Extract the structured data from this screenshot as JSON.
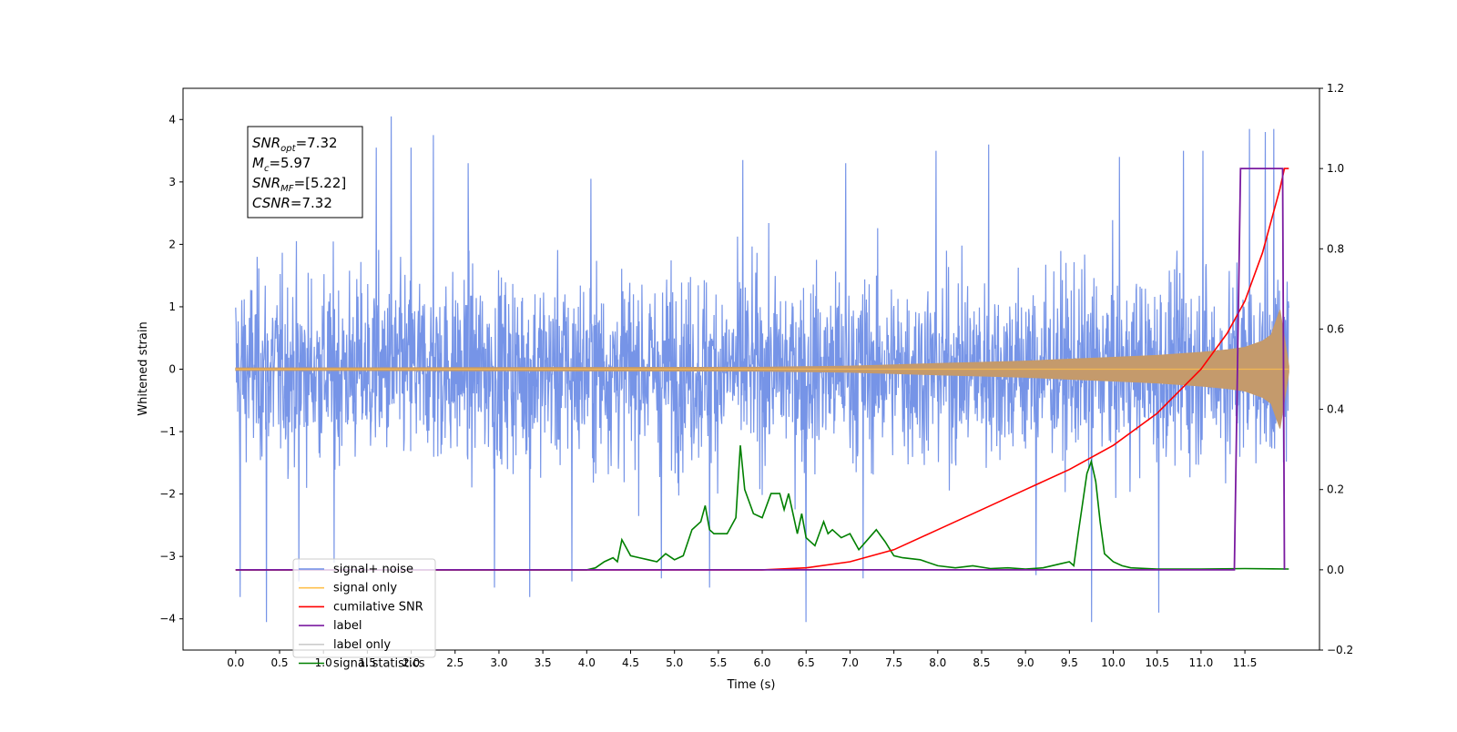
{
  "chart_data": {
    "type": "line",
    "title": "",
    "xlabel": "Time (s)",
    "ylabel": "Whitened strain",
    "xlim": [
      -0.6,
      12.35
    ],
    "ylim": [
      -4.5,
      4.5
    ],
    "y2lim": [
      -0.2,
      1.2
    ],
    "x_ticks": [
      "0.0",
      "0.5",
      "1.0",
      "1.5",
      "2.0",
      "2.5",
      "3.0",
      "3.5",
      "4.0",
      "4.5",
      "5.0",
      "5.5",
      "6.0",
      "6.5",
      "7.0",
      "7.5",
      "8.0",
      "8.5",
      "9.0",
      "9.5",
      "10.0",
      "10.5",
      "11.0",
      "11.5"
    ],
    "y_ticks": [
      "4",
      "3",
      "2",
      "1",
      "0",
      "−1",
      "−2",
      "−3",
      "−4"
    ],
    "y2_ticks": [
      "1.2",
      "1.0",
      "0.8",
      "0.6",
      "0.4",
      "0.2",
      "0.0",
      "−0.2"
    ],
    "legend_position": "lower-left",
    "annotation": {
      "lines": [
        {
          "base": "SNR",
          "sub": "opt",
          "value": "=7.32"
        },
        {
          "base": "M",
          "sub": "c",
          "value": "=5.97"
        },
        {
          "base": "SNR",
          "sub": "MF",
          "value": "=[5.22]"
        },
        {
          "base": "CSNR",
          "sub": "",
          "value": "=7.32"
        }
      ]
    },
    "series": [
      {
        "name": "signal+ noise",
        "color": "#6f8ee6",
        "axis": "left",
        "x_range": [
          0.0,
          12.0
        ],
        "description_values": {
          "band_typical": [
            -1.5,
            1.7
          ],
          "band_peaks": [
            -3.8,
            4.05
          ]
        },
        "spikes": [
          [
            0.05,
            -3.65
          ],
          [
            0.35,
            -4.05
          ],
          [
            0.72,
            -3.4
          ],
          [
            1.12,
            -3.1
          ],
          [
            1.77,
            4.05
          ],
          [
            2.25,
            3.75
          ],
          [
            2.95,
            -3.5
          ],
          [
            3.35,
            -3.65
          ],
          [
            3.83,
            -3.4
          ],
          [
            4.85,
            -3.35
          ],
          [
            5.4,
            -3.5
          ],
          [
            5.78,
            3.35
          ],
          [
            6.5,
            -4.05
          ],
          [
            7.15,
            -3.35
          ],
          [
            7.98,
            3.5
          ],
          [
            8.58,
            3.6
          ],
          [
            9.12,
            -3.3
          ],
          [
            9.75,
            -4.05
          ],
          [
            10.52,
            -3.9
          ],
          [
            11.02,
            3.5
          ],
          [
            11.55,
            3.85
          ],
          [
            11.73,
            3.8
          ],
          [
            11.83,
            3.85
          ],
          [
            1.6,
            3.55
          ],
          [
            2.65,
            3.3
          ],
          [
            4.05,
            3.05
          ],
          [
            6.95,
            3.3
          ],
          [
            10.07,
            3.4
          ],
          [
            10.8,
            3.5
          ],
          [
            2.0,
            3.55
          ]
        ]
      },
      {
        "name": "signal only",
        "color": "#ffc04d",
        "axis": "left",
        "envelope": {
          "x": [
            0,
            6,
            7,
            7.5,
            8,
            8.5,
            9,
            9.5,
            10,
            10.5,
            11,
            11.3,
            11.5,
            11.7,
            11.8,
            11.9,
            11.95,
            12.0
          ],
          "amp": [
            0.02,
            0.03,
            0.05,
            0.07,
            0.09,
            0.11,
            0.13,
            0.16,
            0.19,
            0.22,
            0.27,
            0.31,
            0.35,
            0.45,
            0.55,
            0.95,
            0.5,
            0.05
          ]
        }
      },
      {
        "name": "cumilative SNR",
        "color": "#ff0000",
        "axis": "right",
        "x": [
          0,
          6,
          6.5,
          7,
          7.5,
          8,
          8.5,
          9,
          9.5,
          10,
          10.5,
          11,
          11.3,
          11.5,
          11.7,
          11.8,
          11.9,
          11.95,
          12.0
        ],
        "values": [
          0,
          0,
          0.005,
          0.02,
          0.05,
          0.1,
          0.15,
          0.2,
          0.25,
          0.31,
          0.39,
          0.5,
          0.59,
          0.67,
          0.79,
          0.87,
          0.95,
          1.0,
          1.0
        ]
      },
      {
        "name": "label",
        "color": "#7a1aa0",
        "axis": "right",
        "x": [
          0,
          11.38,
          11.45,
          11.93,
          11.95
        ],
        "values": [
          0,
          0,
          1,
          1,
          0
        ]
      },
      {
        "name": "label only",
        "color": "#cccccc",
        "axis": "right",
        "hidden_in_plot": true
      },
      {
        "name": "signal statistics",
        "color": "#008000",
        "axis": "right",
        "x": [
          0,
          4.0,
          4.1,
          4.2,
          4.3,
          4.35,
          4.4,
          4.5,
          4.6,
          4.7,
          4.8,
          4.9,
          5.0,
          5.1,
          5.2,
          5.3,
          5.35,
          5.4,
          5.45,
          5.5,
          5.6,
          5.7,
          5.75,
          5.8,
          5.85,
          5.9,
          6.0,
          6.1,
          6.2,
          6.25,
          6.3,
          6.4,
          6.45,
          6.5,
          6.6,
          6.7,
          6.75,
          6.8,
          6.9,
          7.0,
          7.1,
          7.2,
          7.3,
          7.35,
          7.4,
          7.5,
          7.6,
          7.8,
          8.0,
          8.2,
          8.4,
          8.6,
          8.8,
          9.0,
          9.2,
          9.4,
          9.5,
          9.55,
          9.6,
          9.7,
          9.75,
          9.8,
          9.85,
          9.9,
          10.0,
          10.1,
          10.2,
          10.5,
          11.0,
          11.5,
          12.0
        ],
        "values": [
          0,
          0,
          0.005,
          0.02,
          0.03,
          0.02,
          0.075,
          0.035,
          0.03,
          0.025,
          0.02,
          0.04,
          0.025,
          0.035,
          0.1,
          0.12,
          0.16,
          0.1,
          0.09,
          0.09,
          0.09,
          0.13,
          0.31,
          0.2,
          0.17,
          0.14,
          0.13,
          0.19,
          0.19,
          0.15,
          0.19,
          0.09,
          0.14,
          0.08,
          0.06,
          0.12,
          0.09,
          0.1,
          0.08,
          0.09,
          0.05,
          0.075,
          0.1,
          0.085,
          0.07,
          0.035,
          0.03,
          0.025,
          0.01,
          0.005,
          0.01,
          0.003,
          0.005,
          0.002,
          0.005,
          0.015,
          0.02,
          0.01,
          0.09,
          0.24,
          0.27,
          0.22,
          0.12,
          0.04,
          0.02,
          0.01,
          0.005,
          0.002,
          0.002,
          0.003,
          0.002
        ]
      }
    ]
  }
}
